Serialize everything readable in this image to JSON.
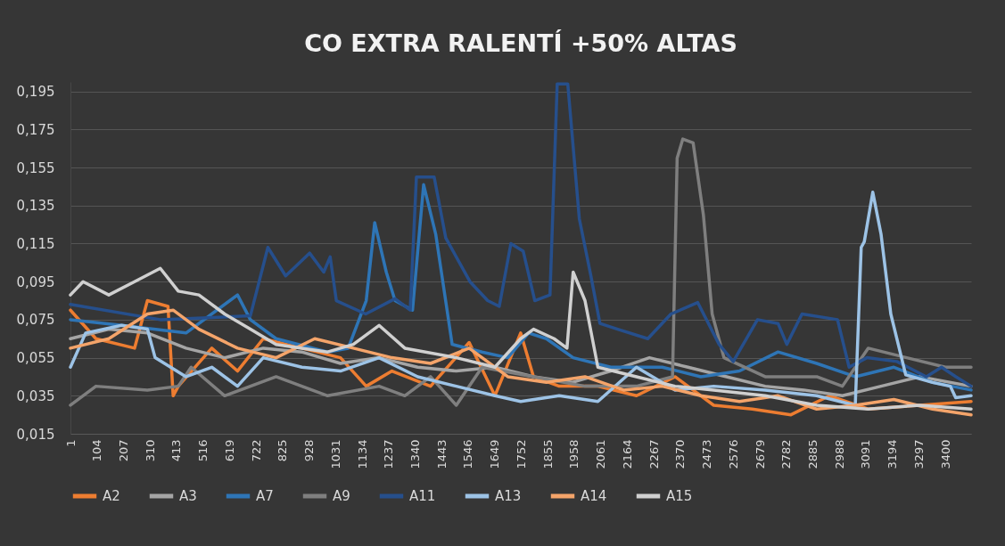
{
  "chart_data": {
    "type": "line",
    "title": "CO EXTRA RALENTÍ +50% ALTAS",
    "xlim": [
      1,
      3500
    ],
    "xticks": [
      1,
      104,
      207,
      310,
      413,
      516,
      619,
      722,
      825,
      928,
      1031,
      1134,
      1237,
      1340,
      1443,
      1546,
      1649,
      1752,
      1855,
      1958,
      2061,
      2164,
      2267,
      2370,
      2473,
      2576,
      2679,
      2782,
      2885,
      2988,
      3091,
      3194,
      3297,
      3400
    ],
    "ylim": [
      0.015,
      0.2
    ],
    "yticks": [
      {
        "value": 0.015,
        "label": "0,015"
      },
      {
        "value": 0.035,
        "label": "0,035"
      },
      {
        "value": 0.055,
        "label": "0,055"
      },
      {
        "value": 0.075,
        "label": "0,075"
      },
      {
        "value": 0.095,
        "label": "0,095"
      },
      {
        "value": 0.115,
        "label": "0,115"
      },
      {
        "value": 0.135,
        "label": "0,135"
      },
      {
        "value": 0.155,
        "label": "0,155"
      },
      {
        "value": 0.175,
        "label": "0,175"
      },
      {
        "value": 0.195,
        "label": "0,195"
      }
    ],
    "grid": "y",
    "legend": "bottom",
    "series": [
      {
        "name": "A2",
        "color": "#ed7d31",
        "x": [
          1,
          100,
          250,
          300,
          380,
          400,
          420,
          550,
          650,
          750,
          900,
          1050,
          1150,
          1250,
          1400,
          1550,
          1650,
          1750,
          1800,
          1900,
          2050,
          2200,
          2350,
          2500,
          2650,
          2800,
          2950,
          3100,
          3300,
          3500
        ],
        "values": [
          0.08,
          0.065,
          0.06,
          0.085,
          0.082,
          0.035,
          0.04,
          0.06,
          0.048,
          0.065,
          0.06,
          0.055,
          0.04,
          0.048,
          0.04,
          0.063,
          0.035,
          0.068,
          0.045,
          0.04,
          0.04,
          0.035,
          0.045,
          0.03,
          0.028,
          0.025,
          0.035,
          0.028,
          0.03,
          0.032
        ]
      },
      {
        "name": "A3",
        "color": "#a5a5a5",
        "x": [
          1,
          150,
          300,
          450,
          600,
          750,
          900,
          1050,
          1200,
          1350,
          1500,
          1650,
          1800,
          1950,
          2100,
          2250,
          2400,
          2550,
          2700,
          2850,
          3000,
          3150,
          3300,
          3500
        ],
        "values": [
          0.065,
          0.07,
          0.068,
          0.06,
          0.055,
          0.06,
          0.058,
          0.052,
          0.055,
          0.05,
          0.048,
          0.05,
          0.045,
          0.042,
          0.048,
          0.055,
          0.05,
          0.045,
          0.04,
          0.038,
          0.035,
          0.04,
          0.045,
          0.04
        ]
      },
      {
        "name": "A7",
        "color": "#2e75b6",
        "x": [
          1,
          200,
          450,
          650,
          700,
          800,
          1000,
          1080,
          1150,
          1183,
          1228,
          1262,
          1330,
          1373,
          1420,
          1484,
          1600,
          1700,
          1781,
          1850,
          1954,
          2100,
          2300,
          2450,
          2600,
          2750,
          2900,
          3050,
          3200,
          3350,
          3500
        ],
        "values": [
          0.075,
          0.072,
          0.068,
          0.088,
          0.075,
          0.065,
          0.058,
          0.06,
          0.085,
          0.126,
          0.1,
          0.085,
          0.08,
          0.146,
          0.12,
          0.062,
          0.058,
          0.055,
          0.068,
          0.065,
          0.055,
          0.05,
          0.05,
          0.045,
          0.048,
          0.058,
          0.052,
          0.045,
          0.05,
          0.042,
          0.038
        ]
      },
      {
        "name": "A9",
        "color": "#7f7f7f",
        "x": [
          1,
          100,
          300,
          420,
          470,
          600,
          800,
          1000,
          1200,
          1300,
          1400,
          1500,
          1600,
          1800,
          2000,
          2200,
          2340,
          2358,
          2380,
          2420,
          2460,
          2494,
          2540,
          2700,
          2900,
          3000,
          3100,
          3250,
          3400,
          3500
        ],
        "values": [
          0.03,
          0.04,
          0.038,
          0.04,
          0.05,
          0.035,
          0.045,
          0.035,
          0.04,
          0.035,
          0.045,
          0.03,
          0.05,
          0.045,
          0.04,
          0.04,
          0.045,
          0.16,
          0.17,
          0.168,
          0.13,
          0.078,
          0.055,
          0.045,
          0.045,
          0.04,
          0.06,
          0.055,
          0.05,
          0.05
        ]
      },
      {
        "name": "A11",
        "color": "#264f8c",
        "x": [
          1,
          350,
          700,
          768,
          837,
          930,
          985,
          1010,
          1034,
          1148,
          1262,
          1321,
          1345,
          1414,
          1459,
          1553,
          1622,
          1667,
          1712,
          1760,
          1805,
          1864,
          1892,
          1933,
          1978,
          2023,
          2058,
          2127,
          2244,
          2334,
          2438,
          2521,
          2576,
          2670,
          2750,
          2784,
          2843,
          2981,
          3026,
          3095,
          3212,
          3326,
          3385,
          3441,
          3500
        ],
        "values": [
          0.083,
          0.075,
          0.077,
          0.113,
          0.098,
          0.11,
          0.1,
          0.108,
          0.085,
          0.078,
          0.086,
          0.08,
          0.15,
          0.15,
          0.118,
          0.095,
          0.085,
          0.082,
          0.115,
          0.111,
          0.085,
          0.088,
          0.199,
          0.199,
          0.128,
          0.098,
          0.073,
          0.07,
          0.065,
          0.078,
          0.084,
          0.062,
          0.053,
          0.075,
          0.073,
          0.062,
          0.078,
          0.075,
          0.05,
          0.055,
          0.053,
          0.045,
          0.05,
          0.045,
          0.04
        ]
      },
      {
        "name": "A13",
        "color": "#9dc3e6",
        "x": [
          1,
          60,
          200,
          300,
          330,
          450,
          550,
          650,
          750,
          900,
          1050,
          1200,
          1350,
          1500,
          1650,
          1750,
          1900,
          2050,
          2200,
          2350,
          2500,
          2700,
          2900,
          3050,
          3073,
          3085,
          3118,
          3150,
          3188,
          3246,
          3350,
          3419,
          3440,
          3500
        ],
        "values": [
          0.05,
          0.068,
          0.072,
          0.07,
          0.055,
          0.045,
          0.05,
          0.04,
          0.055,
          0.05,
          0.048,
          0.055,
          0.045,
          0.04,
          0.035,
          0.032,
          0.035,
          0.032,
          0.05,
          0.038,
          0.04,
          0.038,
          0.035,
          0.03,
          0.113,
          0.116,
          0.142,
          0.12,
          0.078,
          0.046,
          0.042,
          0.04,
          0.034,
          0.035
        ]
      },
      {
        "name": "A14",
        "color": "#f4a46a",
        "x": [
          1,
          150,
          300,
          400,
          500,
          650,
          800,
          950,
          1100,
          1250,
          1400,
          1550,
          1700,
          1850,
          2000,
          2150,
          2300,
          2450,
          2600,
          2750,
          2900,
          3050,
          3200,
          3350,
          3500
        ],
        "values": [
          0.06,
          0.065,
          0.078,
          0.08,
          0.07,
          0.06,
          0.055,
          0.065,
          0.06,
          0.055,
          0.052,
          0.06,
          0.045,
          0.042,
          0.045,
          0.038,
          0.04,
          0.035,
          0.032,
          0.035,
          0.028,
          0.03,
          0.033,
          0.028,
          0.025
        ]
      },
      {
        "name": "A15",
        "color": "#d0d0d0",
        "x": [
          1,
          50,
          150,
          250,
          350,
          420,
          500,
          600,
          700,
          800,
          1000,
          1100,
          1200,
          1300,
          1500,
          1650,
          1750,
          1800,
          1880,
          1930,
          1954,
          2000,
          2050,
          2200,
          2350,
          2500,
          2700,
          2900,
          3100,
          3300,
          3500
        ],
        "values": [
          0.088,
          0.095,
          0.088,
          0.095,
          0.102,
          0.09,
          0.088,
          0.078,
          0.07,
          0.062,
          0.058,
          0.062,
          0.072,
          0.06,
          0.055,
          0.05,
          0.065,
          0.07,
          0.065,
          0.06,
          0.1,
          0.085,
          0.05,
          0.045,
          0.04,
          0.038,
          0.035,
          0.03,
          0.028,
          0.03,
          0.028
        ]
      }
    ]
  }
}
